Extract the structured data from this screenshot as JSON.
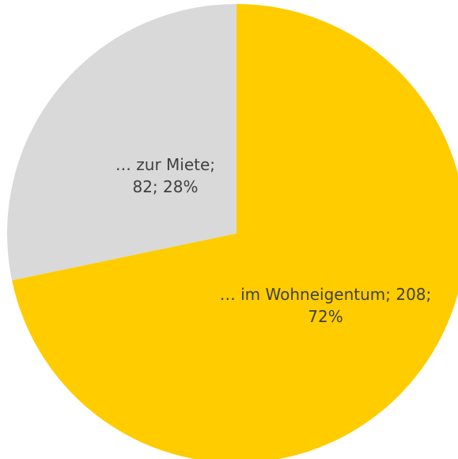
{
  "chart_data": {
    "type": "pie",
    "values": [
      208,
      82
    ],
    "value_labels": [
      "… im Wohneigentum; 208; 72%",
      "… zur Miete; 82; 28%"
    ],
    "colors": [
      "#ffcc00",
      "#d9d9d9"
    ]
  }
}
